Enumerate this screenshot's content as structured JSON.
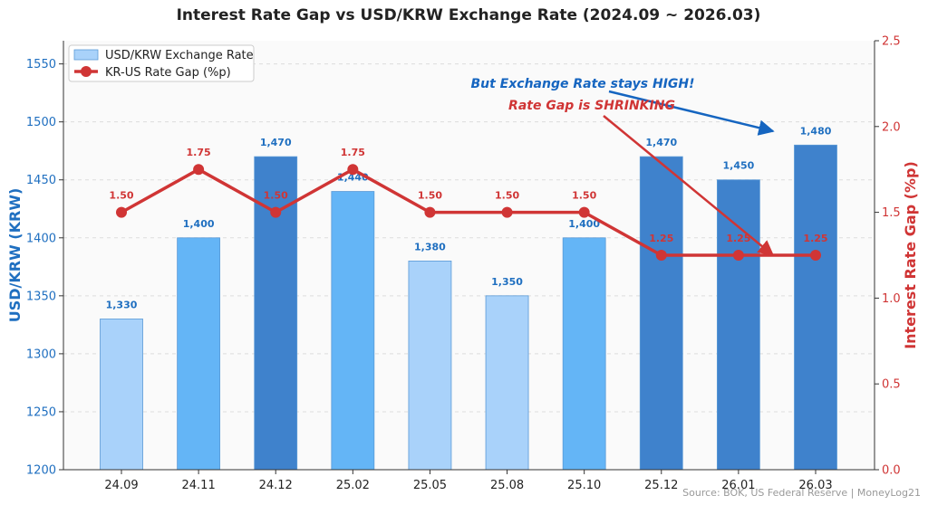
{
  "chart_data": {
    "type": "bar+line",
    "title": "Interest Rate Gap vs USD/KRW Exchange Rate (2024.09 ~ 2026.03)",
    "categories": [
      "24.09",
      "24.11",
      "24.12",
      "25.02",
      "25.05",
      "25.08",
      "25.10",
      "25.12",
      "26.01",
      "26.03"
    ],
    "y_left": {
      "label": "USD/KRW (KRW)",
      "range": [
        1200,
        1570
      ],
      "ticks": [
        1200,
        1250,
        1300,
        1350,
        1400,
        1450,
        1500,
        1550
      ],
      "color": "#1f6fc0"
    },
    "y_right": {
      "label": "Interest Rate Gap (%p)",
      "range": [
        0,
        2.5
      ],
      "ticks": [
        "0.0",
        "0.5",
        "1.0",
        "1.5",
        "2.0",
        "2.5"
      ],
      "color": "#d03535"
    },
    "series": [
      {
        "name": "USD/KRW Exchange Rate",
        "type": "bar",
        "axis": "left",
        "values": [
          1330,
          1400,
          1470,
          1440,
          1380,
          1350,
          1400,
          1470,
          1450,
          1480
        ],
        "labels": [
          "1,330",
          "1,400",
          "1,470",
          "1,440",
          "1,380",
          "1,350",
          "1,400",
          "1,470",
          "1,450",
          "1,480"
        ],
        "colors": [
          "#a9d2fa",
          "#64b5f6",
          "#3f82cc",
          "#64b5f6",
          "#a9d2fa",
          "#a9d2fa",
          "#64b5f6",
          "#3f82cc",
          "#3f82cc",
          "#3f82cc"
        ],
        "label_color": "#1f6fc0"
      },
      {
        "name": "KR-US Rate Gap (%p)",
        "type": "line",
        "axis": "right",
        "values": [
          1.5,
          1.75,
          1.5,
          1.75,
          1.5,
          1.5,
          1.5,
          1.25,
          1.25,
          1.25
        ],
        "labels": [
          "1.50",
          "1.75",
          "1.50",
          "1.75",
          "1.50",
          "1.50",
          "1.50",
          "1.25",
          "1.25",
          "1.25"
        ],
        "color": "#d03535"
      }
    ],
    "legend_position": "top-left",
    "grid": true,
    "annotations": [
      {
        "text": "But Exchange Rate stays HIGH!",
        "color": "#1565c0",
        "arrow_to_category": "26.03",
        "arrow_to_value": 1492,
        "arrow_to_axis": "left"
      },
      {
        "text": "Rate Gap is SHRINKING",
        "color": "#d03535",
        "arrow_to_category": "26.01",
        "arrow_to_value": 1.25,
        "arrow_to_axis": "right"
      }
    ],
    "source": "Source: BOK, US Federal Reserve | MoneyLog21"
  }
}
